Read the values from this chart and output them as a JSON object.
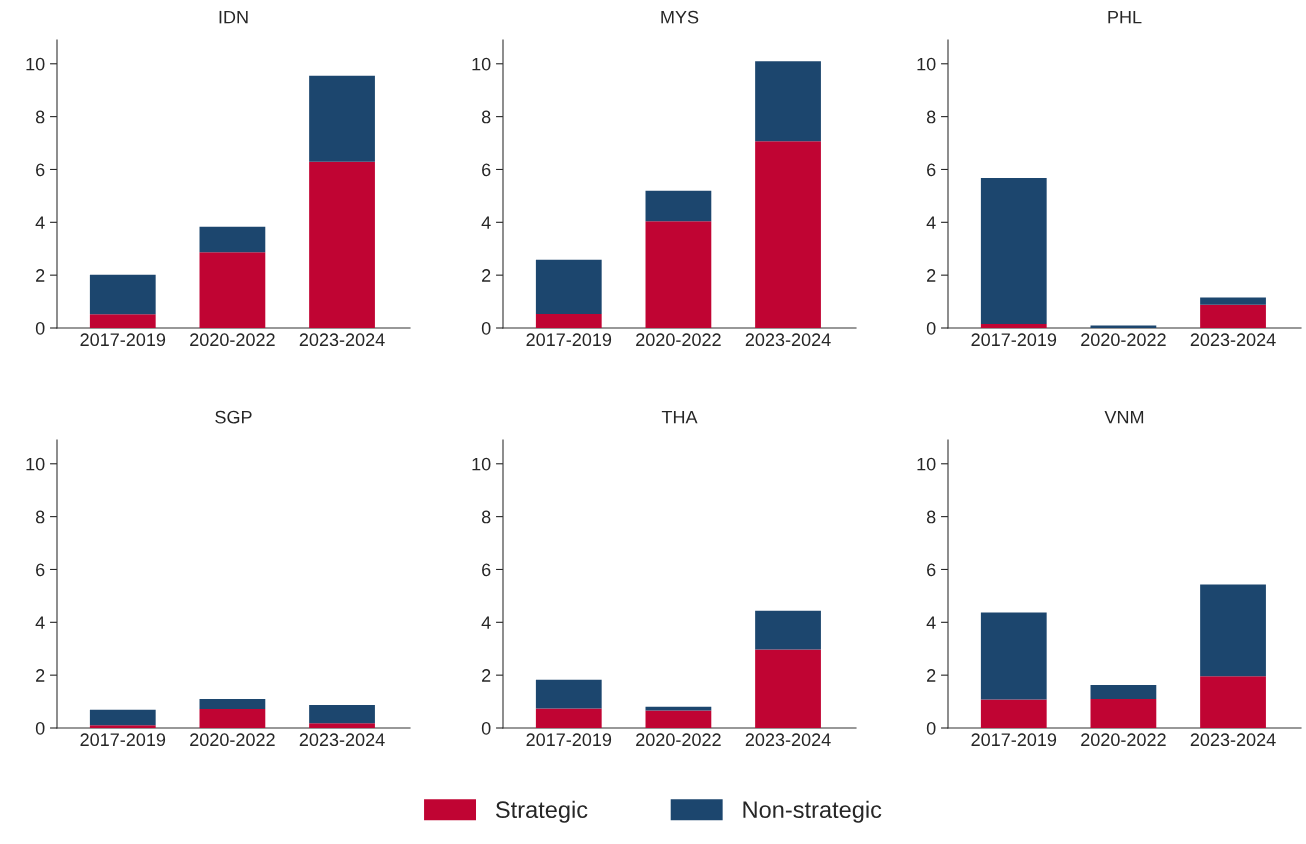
{
  "chart_data": [
    {
      "type": "bar",
      "title": "IDN",
      "categories": [
        "2017-2019",
        "2020-2022",
        "2023-2024"
      ],
      "stacked": true,
      "ylim": [
        0,
        10.9
      ],
      "yticks": [
        0,
        2,
        4,
        6,
        8,
        10
      ],
      "grid": false,
      "legend": "bottom",
      "series": [
        {
          "name": "Strategic",
          "color": "#c00433",
          "values": [
            0.52,
            2.87,
            6.29
          ]
        },
        {
          "name": "Non-strategic",
          "color": "#1c466e",
          "values": [
            1.5,
            0.96,
            3.26
          ]
        }
      ]
    },
    {
      "type": "bar",
      "title": "MYS",
      "categories": [
        "2017-2019",
        "2020-2022",
        "2023-2024"
      ],
      "stacked": true,
      "ylim": [
        0,
        10.9
      ],
      "yticks": [
        0,
        2,
        4,
        6,
        8,
        10
      ],
      "grid": false,
      "legend": "bottom",
      "series": [
        {
          "name": "Strategic",
          "color": "#c00433",
          "values": [
            0.53,
            4.04,
            7.07
          ]
        },
        {
          "name": "Non-strategic",
          "color": "#1c466e",
          "values": [
            2.05,
            1.15,
            3.03
          ]
        }
      ]
    },
    {
      "type": "bar",
      "title": "PHL",
      "categories": [
        "2017-2019",
        "2020-2022",
        "2023-2024"
      ],
      "stacked": true,
      "ylim": [
        0,
        10.9
      ],
      "yticks": [
        0,
        2,
        4,
        6,
        8,
        10
      ],
      "grid": false,
      "legend": "bottom",
      "series": [
        {
          "name": "Strategic",
          "color": "#c00433",
          "values": [
            0.15,
            null,
            0.88
          ]
        },
        {
          "name": "Non-strategic",
          "color": "#1c466e",
          "values": [
            5.53,
            0.09,
            0.27
          ]
        }
      ]
    },
    {
      "type": "bar",
      "title": "SGP",
      "categories": [
        "2017-2019",
        "2020-2022",
        "2023-2024"
      ],
      "stacked": true,
      "ylim": [
        0,
        10.9
      ],
      "yticks": [
        0,
        2,
        4,
        6,
        8,
        10
      ],
      "grid": false,
      "legend": "bottom",
      "series": [
        {
          "name": "Strategic",
          "color": "#c00433",
          "values": [
            0.1,
            0.72,
            0.18
          ]
        },
        {
          "name": "Non-strategic",
          "color": "#1c466e",
          "values": [
            0.59,
            0.38,
            0.69
          ]
        }
      ]
    },
    {
      "type": "bar",
      "title": "THA",
      "categories": [
        "2017-2019",
        "2020-2022",
        "2023-2024"
      ],
      "stacked": true,
      "ylim": [
        0,
        10.9
      ],
      "yticks": [
        0,
        2,
        4,
        6,
        8,
        10
      ],
      "grid": false,
      "legend": "bottom",
      "series": [
        {
          "name": "Strategic",
          "color": "#c00433",
          "values": [
            0.74,
            0.66,
            2.97
          ]
        },
        {
          "name": "Non-strategic",
          "color": "#1c466e",
          "values": [
            1.09,
            0.14,
            1.47
          ]
        }
      ]
    },
    {
      "type": "bar",
      "title": "VNM",
      "categories": [
        "2017-2019",
        "2020-2022",
        "2023-2024"
      ],
      "stacked": true,
      "ylim": [
        0,
        10.9
      ],
      "yticks": [
        0,
        2,
        4,
        6,
        8,
        10
      ],
      "grid": false,
      "legend": "bottom",
      "series": [
        {
          "name": "Strategic",
          "color": "#c00433",
          "values": [
            1.08,
            1.1,
            1.96
          ]
        },
        {
          "name": "Non-strategic",
          "color": "#1c466e",
          "values": [
            3.29,
            0.53,
            3.47
          ]
        }
      ]
    }
  ]
}
